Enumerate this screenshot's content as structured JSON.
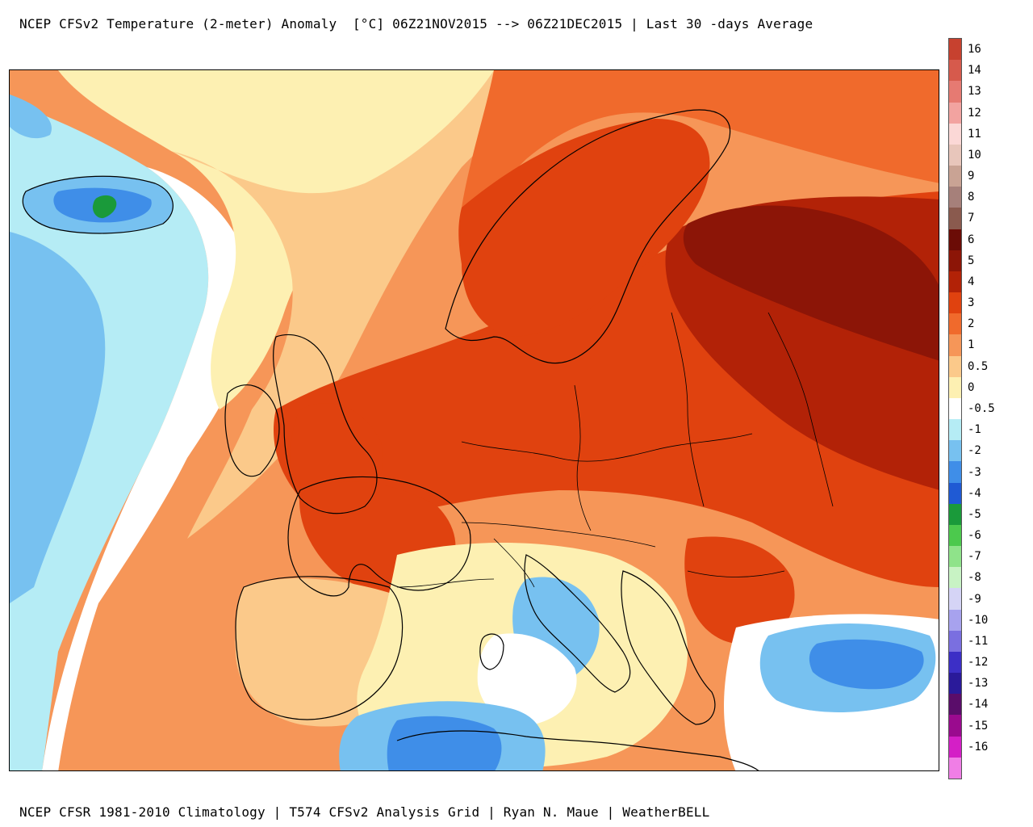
{
  "header": {
    "title": "NCEP CFSv2 Temperature (2-meter) Anomaly  [°C] 06Z21NOV2015 --> 06Z21DEC2015 | Last 30 -days Average"
  },
  "footer": {
    "credits": "NCEP CFSR 1981-2010 Climatology | T574 CFSv2 Analysis Grid | Ryan N. Maue | WeatherBELL"
  },
  "legend": {
    "levels": [
      {
        "label": "16",
        "color": "#c7412f"
      },
      {
        "label": "14",
        "color": "#d65a4c"
      },
      {
        "label": "13",
        "color": "#e67a72"
      },
      {
        "label": "12",
        "color": "#f2a3a0"
      },
      {
        "label": "11",
        "color": "#fbd8d6"
      },
      {
        "label": "10",
        "color": "#e8c6bb"
      },
      {
        "label": "9",
        "color": "#c9a394"
      },
      {
        "label": "8",
        "color": "#a6807a"
      },
      {
        "label": "7",
        "color": "#8a5a4e"
      },
      {
        "label": "6",
        "color": "#6b0c06"
      },
      {
        "label": "5",
        "color": "#8c1507"
      },
      {
        "label": "4",
        "color": "#b22207"
      },
      {
        "label": "3",
        "color": "#e0420f"
      },
      {
        "label": "2",
        "color": "#f06a2c"
      },
      {
        "label": "1",
        "color": "#f69658"
      },
      {
        "label": "0.5",
        "color": "#fbc98a"
      },
      {
        "label": "0",
        "color": "#fdf0b2"
      },
      {
        "label": "-0.5",
        "color": "#ffffff"
      },
      {
        "label": "-1",
        "color": "#b5ecf5"
      },
      {
        "label": "-2",
        "color": "#77c1f0"
      },
      {
        "label": "-3",
        "color": "#3f8ee8"
      },
      {
        "label": "-4",
        "color": "#1f5ad4"
      },
      {
        "label": "-5",
        "color": "#1a9a3a"
      },
      {
        "label": "-6",
        "color": "#4cc94d"
      },
      {
        "label": "-7",
        "color": "#8fe38a"
      },
      {
        "label": "-8",
        "color": "#c8f3c4"
      },
      {
        "label": "-9",
        "color": "#d5d4f6"
      },
      {
        "label": "-10",
        "color": "#a7a2ee"
      },
      {
        "label": "-11",
        "color": "#7a6fe0"
      },
      {
        "label": "-12",
        "color": "#3c2fc6"
      },
      {
        "label": "-13",
        "color": "#2a1a9a"
      },
      {
        "label": "-14",
        "color": "#5a0d6a"
      },
      {
        "label": "-15",
        "color": "#9a0a8e"
      },
      {
        "label": "-16",
        "color": "#d41fc6"
      },
      {
        "label": "",
        "color": "#f07ee6"
      }
    ]
  },
  "map": {
    "colors": {
      "ocean_base": "#f29a5d",
      "cold_1": "#b5ecf5",
      "cold_2": "#77c1f0",
      "cold_3": "#3f8ee8",
      "green": "#1a9a3a",
      "neutral": "#fdf0b2",
      "pale": "#fbc98a",
      "warm_1": "#f69658",
      "warm_2": "#f06a2c",
      "warm_3": "#e0420f",
      "warm_4": "#b22207",
      "warm_5": "#8c1507",
      "border": "#000000",
      "lakes": "#888888"
    }
  }
}
